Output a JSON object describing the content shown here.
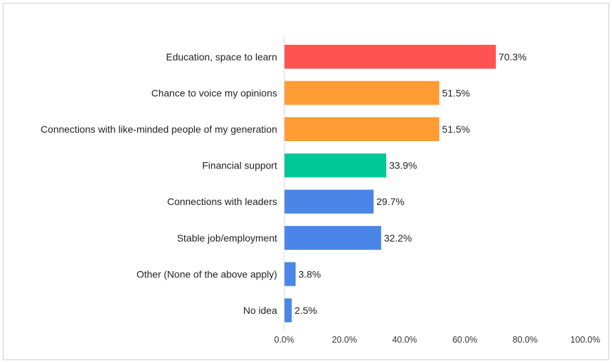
{
  "chart_data": {
    "type": "bar",
    "orientation": "horizontal",
    "categories": [
      "Education, space to learn",
      "Chance to voice my opinions",
      "Connections with like-minded people of my generation",
      "Financial support",
      "Connections with leaders",
      "Stable job/employment",
      "Other (None of the above apply)",
      "No idea"
    ],
    "values": [
      70.3,
      51.5,
      51.5,
      33.9,
      29.7,
      32.2,
      3.8,
      2.5
    ],
    "value_labels": [
      "70.3%",
      "51.5%",
      "51.5%",
      "33.9%",
      "29.7%",
      "32.2%",
      "3.8%",
      "2.5%"
    ],
    "bar_colors": [
      "#ff5252",
      "#ff9b33",
      "#ff9b33",
      "#00c896",
      "#4a86e8",
      "#4a86e8",
      "#4a86e8",
      "#4a86e8"
    ],
    "xlim": [
      0,
      100
    ],
    "x_ticks": [
      "0.0%",
      "20.0%",
      "40.0%",
      "60.0%",
      "80.0%",
      "100.0%"
    ],
    "grid": false
  }
}
